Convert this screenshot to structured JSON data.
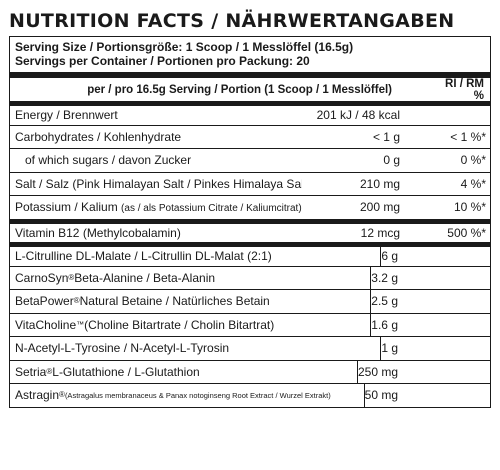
{
  "title": "NUTRITION FACTS / NÄHRWERTANGABEN",
  "serving": {
    "size": "Serving Size / Portionsgröße: 1 Scoop / 1 Messlöffel (16.5g)",
    "per_container": "Servings per Container / Portionen pro Packung: 20"
  },
  "header": {
    "per_serving": "per / pro 16.5g Serving / Portion (1 Scoop / 1 Messlöffel)",
    "ri": "RI / RM %"
  },
  "energy": {
    "name": "Energy / Brennwert",
    "amount": "201 kJ / 48 kcal"
  },
  "nutrients": [
    {
      "name": "Carbohydrates / Kohlenhydrate",
      "amount": "< 1 g",
      "ri": "< 1 %*"
    },
    {
      "name": "of which sugars / davon Zucker",
      "amount": "0 g",
      "ri": "0 %*"
    },
    {
      "name": "Salt / Salz (Pink Himalayan Salt / Pinkes Himalaya Salz)",
      "amount": "210 mg",
      "ri": "4 %*"
    },
    {
      "name_main": "Potassium / Kalium",
      "name_sub": "(as / als Potassium Citrate / Kaliumcitrat)",
      "amount": "200 mg",
      "ri": "10 %*"
    }
  ],
  "vitamin": {
    "name": "Vitamin B12 (Methylcobalamin)",
    "amount": "12 mcg",
    "ri": "500 %*"
  },
  "actives": [
    {
      "name": "L-Citrulline DL-Malate / L-Citrullin DL-Malat (2:1)",
      "amount": "6 g"
    },
    {
      "name_main": "CarnoSyn",
      "mark": "®",
      "name_rest": " Beta-Alanine / Beta-Alanin",
      "amount": "3.2 g"
    },
    {
      "name_main": "BetaPower",
      "mark": "®",
      "name_rest": " Natural Betaine / Natürliches Betain",
      "amount": "2.5 g"
    },
    {
      "name_main": "VitaCholine",
      "mark": "™",
      "name_rest": " (Choline Bitartrate / Cholin Bitartrat)",
      "amount": "1.6 g"
    },
    {
      "name": "N-Acetyl-L-Tyrosine / N-Acetyl-L-Tyrosin",
      "amount": "1 g"
    },
    {
      "name_main": "Setria",
      "mark": "®",
      "name_rest": " L-Glutathione / L-Glutathion",
      "amount": "250 mg"
    },
    {
      "name_main": "Astragin",
      "mark": "®",
      "name_sub": " (Astragalus membranaceus & Panax notoginseng Root Extract / Wurzel Extrakt)",
      "amount": "50 mg"
    }
  ]
}
